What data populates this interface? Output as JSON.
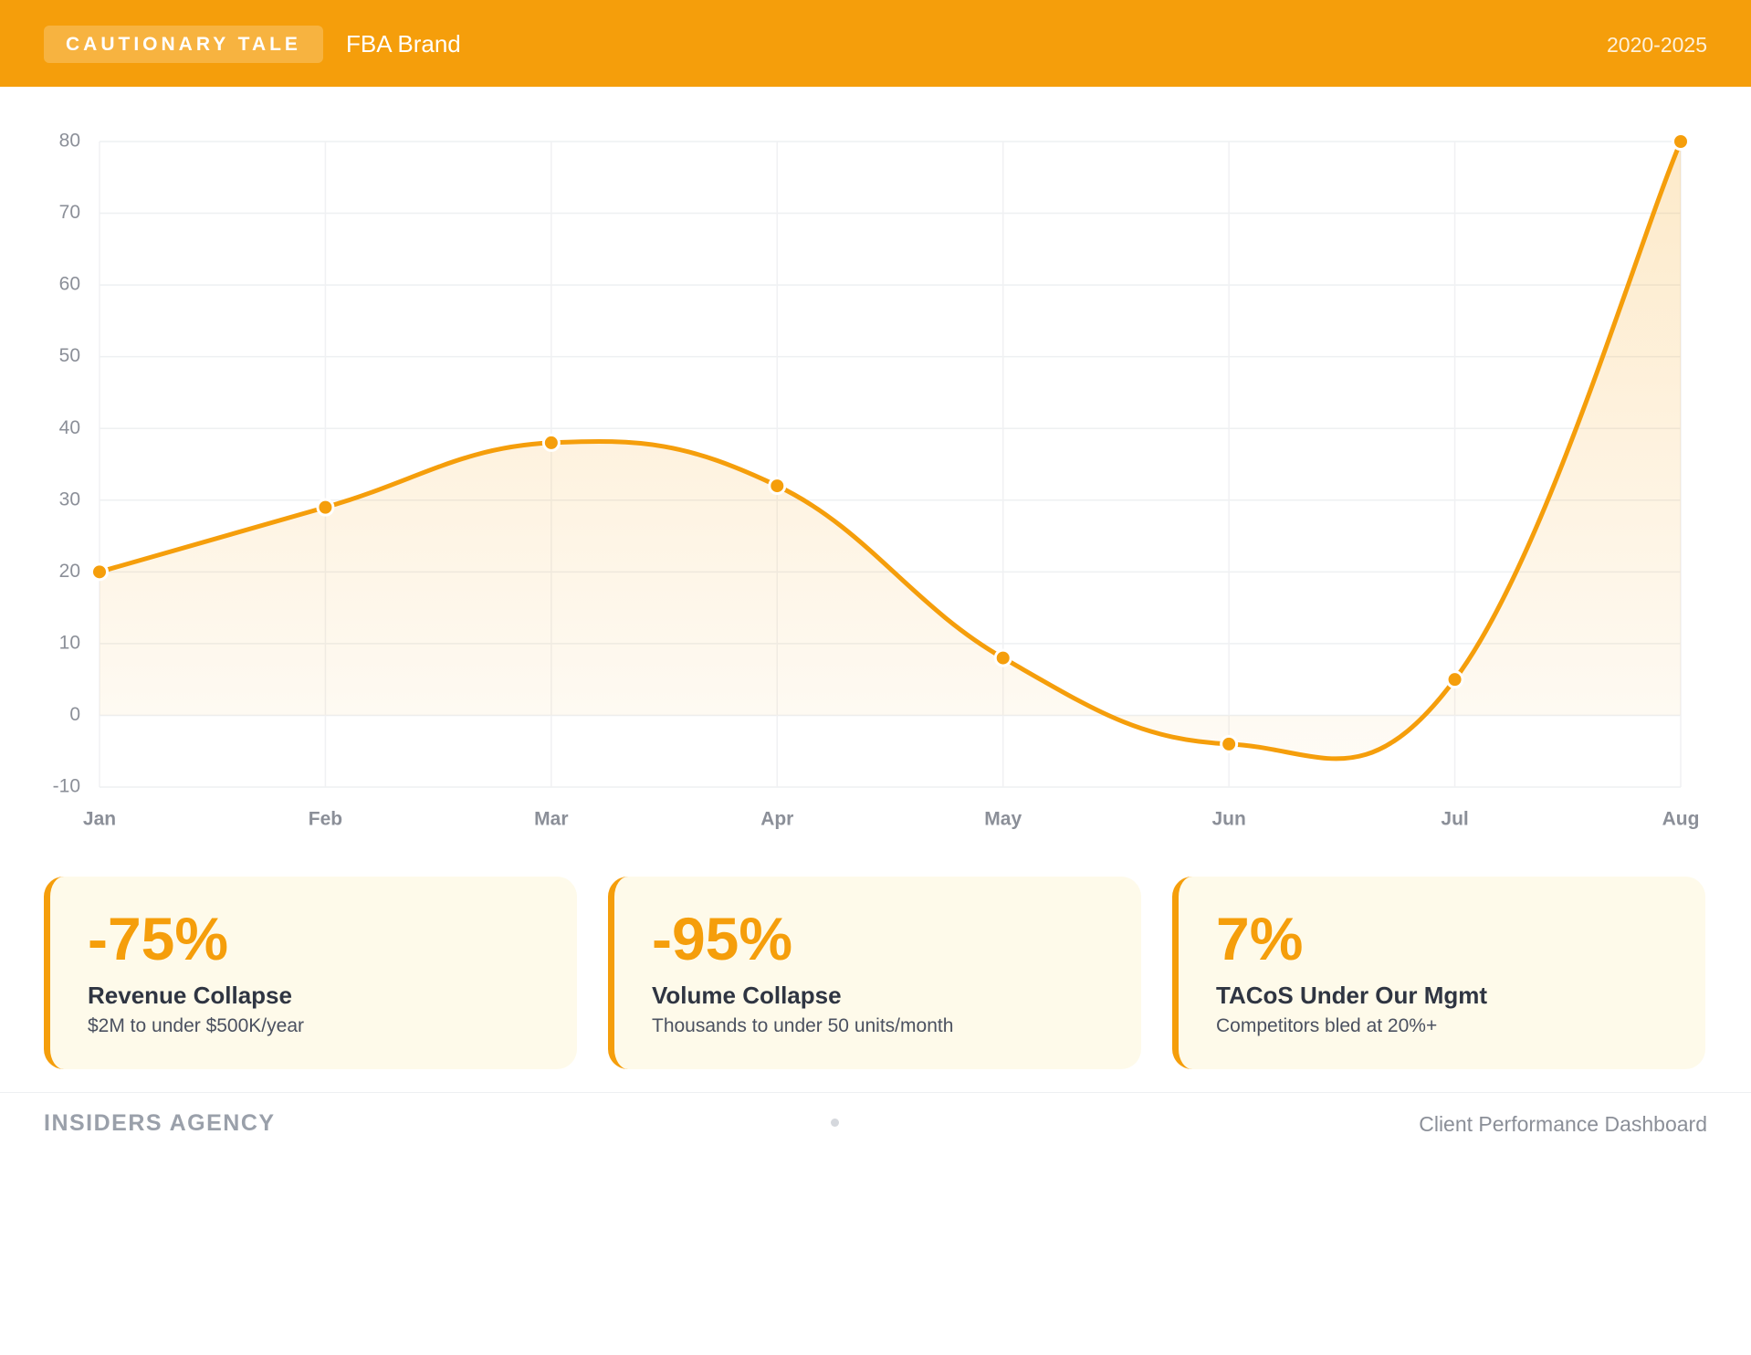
{
  "header": {
    "badge": "CAUTIONARY TALE",
    "brand": "FBA Brand",
    "years": "2020-2025"
  },
  "chart_data": {
    "type": "line",
    "categories": [
      "Jan",
      "Feb",
      "Mar",
      "Apr",
      "May",
      "Jun",
      "Jul",
      "Aug"
    ],
    "series": [
      {
        "color": "#f59e0b",
        "values": [
          20,
          29,
          38,
          32,
          8,
          -4,
          5,
          80
        ]
      }
    ],
    "ylim": [
      -10,
      80
    ],
    "yticks": [
      -10,
      0,
      10,
      20,
      30,
      40,
      50,
      60,
      70,
      80
    ],
    "grid": true
  },
  "cards": [
    {
      "value": "-75%",
      "label": "Revenue Collapse",
      "detail": "$2M to under $500K/year"
    },
    {
      "value": "-95%",
      "label": "Volume Collapse",
      "detail": "Thousands to under 50 units/month"
    },
    {
      "value": "7%",
      "label": "TACoS Under Our Mgmt",
      "detail": "Competitors bled at 20%+"
    }
  ],
  "footer": {
    "left": "INSIDERS AGENCY",
    "right": "Client Performance Dashboard"
  }
}
